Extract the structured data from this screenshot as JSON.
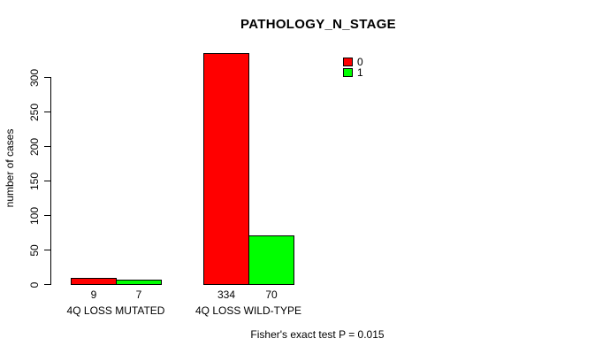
{
  "chart_data": {
    "type": "bar",
    "title": "PATHOLOGY_N_STAGE",
    "ylabel": "number of cases",
    "xlabel": "",
    "categories": [
      "4Q LOSS MUTATED",
      "4Q LOSS WILD-TYPE"
    ],
    "series": [
      {
        "name": "0",
        "color": "#ff0000",
        "values": [
          9,
          334
        ]
      },
      {
        "name": "1",
        "color": "#00ff00",
        "values": [
          7,
          70
        ]
      }
    ],
    "ylim": [
      0,
      300
    ],
    "yticks": [
      0,
      50,
      100,
      150,
      200,
      250,
      300
    ],
    "grid": false,
    "bar_value_labels_shown": true,
    "legend_position": "top-right",
    "annotation": "Fisher's exact test P = 0.015"
  },
  "colors": {
    "axis": "#000000",
    "bar_border": "#000000",
    "background": "#ffffff",
    "series_0": "#ff0000",
    "series_1": "#00ff00"
  }
}
